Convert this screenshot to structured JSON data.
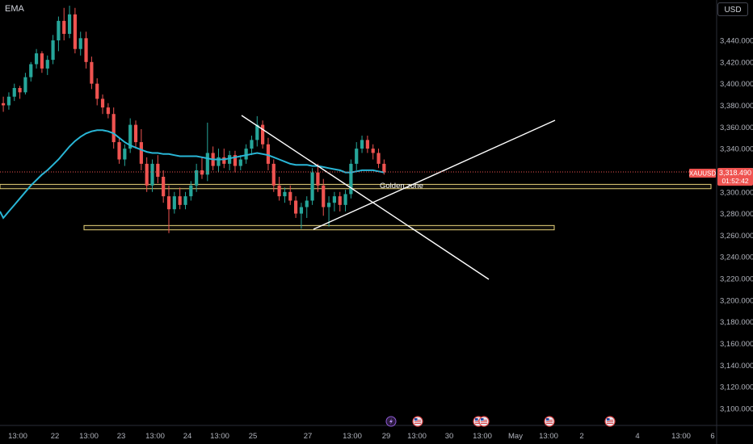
{
  "indicator_label": "EMA",
  "currency_button": "USD",
  "price_tag": {
    "symbol": "XAUUSD",
    "price": "3,318.490",
    "countdown": "01:52:42"
  },
  "annotation": "Golden zone",
  "colors": {
    "bull": "#26a69a",
    "bear": "#ef5350",
    "ema": "#29b6d6",
    "zone": "#e6d27a",
    "trendline": "#ffffff",
    "tag": "#ef5350"
  },
  "event_icons": [
    "lightning-icon",
    "us-flag-icon",
    "us-flag-icon",
    "us-flag-icon",
    "us-flag-icon",
    "us-flag-icon"
  ],
  "chart_data": {
    "type": "candlestick",
    "symbol": "XAUUSD",
    "last_price": 3318.49,
    "ylim": [
      3090,
      3470
    ],
    "y_ticks": [
      "3,440.000",
      "3,420.000",
      "3,400.000",
      "3,380.000",
      "3,360.000",
      "3,340.000",
      "3,320.000",
      "3,300.000",
      "3,280.000",
      "3,260.000",
      "3,240.000",
      "3,220.000",
      "3,200.000",
      "3,180.000",
      "3,160.000",
      "3,140.000",
      "3,120.000",
      "3,100.000"
    ],
    "x_ticks": [
      "13:00",
      "22",
      "13:00",
      "23",
      "13:00",
      "24",
      "13:00",
      "25",
      "27",
      "13:00",
      "29",
      "13:00",
      "30",
      "13:00",
      "May",
      "13:00",
      "2",
      "4",
      "13:00",
      "6"
    ],
    "candles": [
      [
        3382,
        3388,
        3374,
        3380
      ],
      [
        3380,
        3392,
        3376,
        3388
      ],
      [
        3388,
        3400,
        3384,
        3396
      ],
      [
        3396,
        3398,
        3386,
        3392
      ],
      [
        3392,
        3410,
        3390,
        3406
      ],
      [
        3406,
        3420,
        3402,
        3418
      ],
      [
        3418,
        3432,
        3414,
        3428
      ],
      [
        3428,
        3430,
        3410,
        3414
      ],
      [
        3414,
        3426,
        3408,
        3422
      ],
      [
        3422,
        3445,
        3418,
        3440
      ],
      [
        3440,
        3462,
        3430,
        3458
      ],
      [
        3458,
        3470,
        3440,
        3446
      ],
      [
        3446,
        3472,
        3442,
        3464
      ],
      [
        3464,
        3470,
        3428,
        3432
      ],
      [
        3432,
        3448,
        3426,
        3442
      ],
      [
        3442,
        3448,
        3414,
        3420
      ],
      [
        3420,
        3425,
        3395,
        3400
      ],
      [
        3400,
        3405,
        3380,
        3386
      ],
      [
        3386,
        3390,
        3372,
        3378
      ],
      [
        3378,
        3382,
        3368,
        3372
      ],
      [
        3372,
        3378,
        3340,
        3346
      ],
      [
        3346,
        3350,
        3326,
        3330
      ],
      [
        3330,
        3344,
        3324,
        3340
      ],
      [
        3340,
        3368,
        3336,
        3362
      ],
      [
        3362,
        3366,
        3340,
        3346
      ],
      [
        3346,
        3358,
        3320,
        3326
      ],
      [
        3326,
        3332,
        3300,
        3306
      ],
      [
        3306,
        3330,
        3300,
        3326
      ],
      [
        3326,
        3334,
        3308,
        3314
      ],
      [
        3314,
        3320,
        3290,
        3296
      ],
      [
        3296,
        3306,
        3262,
        3284
      ],
      [
        3284,
        3300,
        3280,
        3296
      ],
      [
        3296,
        3304,
        3284,
        3288
      ],
      [
        3288,
        3300,
        3284,
        3296
      ],
      [
        3296,
        3310,
        3292,
        3306
      ],
      [
        3306,
        3326,
        3300,
        3320
      ],
      [
        3320,
        3332,
        3312,
        3316
      ],
      [
        3316,
        3364,
        3310,
        3336
      ],
      [
        3336,
        3342,
        3320,
        3324
      ],
      [
        3324,
        3340,
        3318,
        3332
      ],
      [
        3332,
        3340,
        3322,
        3326
      ],
      [
        3326,
        3338,
        3320,
        3334
      ],
      [
        3334,
        3338,
        3318,
        3324
      ],
      [
        3324,
        3334,
        3320,
        3330
      ],
      [
        3330,
        3344,
        3326,
        3340
      ],
      [
        3340,
        3352,
        3334,
        3348
      ],
      [
        3348,
        3370,
        3342,
        3362
      ],
      [
        3362,
        3366,
        3340,
        3344
      ],
      [
        3344,
        3350,
        3320,
        3326
      ],
      [
        3326,
        3330,
        3300,
        3306
      ],
      [
        3306,
        3314,
        3292,
        3296
      ],
      [
        3296,
        3304,
        3290,
        3300
      ],
      [
        3300,
        3306,
        3288,
        3292
      ],
      [
        3292,
        3296,
        3276,
        3280
      ],
      [
        3280,
        3290,
        3266,
        3286
      ],
      [
        3286,
        3296,
        3276,
        3292
      ],
      [
        3292,
        3322,
        3288,
        3318
      ],
      [
        3318,
        3326,
        3300,
        3306
      ],
      [
        3306,
        3312,
        3278,
        3286
      ],
      [
        3286,
        3296,
        3268,
        3290
      ],
      [
        3290,
        3300,
        3282,
        3296
      ],
      [
        3296,
        3300,
        3282,
        3288
      ],
      [
        3288,
        3302,
        3282,
        3298
      ],
      [
        3298,
        3330,
        3294,
        3326
      ],
      [
        3326,
        3346,
        3320,
        3340
      ],
      [
        3340,
        3352,
        3336,
        3348
      ],
      [
        3348,
        3352,
        3336,
        3340
      ],
      [
        3340,
        3344,
        3330,
        3336
      ],
      [
        3336,
        3340,
        3322,
        3326
      ],
      [
        3326,
        3330,
        3316,
        3318
      ]
    ],
    "ema": [
      3276,
      3282,
      3288,
      3294,
      3300,
      3306,
      3311,
      3316,
      3320,
      3325,
      3330,
      3336,
      3342,
      3347,
      3351,
      3354,
      3356,
      3357,
      3357,
      3356,
      3354,
      3350,
      3346,
      3343,
      3341,
      3339,
      3337,
      3336,
      3336,
      3335,
      3335,
      3334,
      3333,
      3333,
      3333,
      3333,
      3332,
      3331,
      3330,
      3330,
      3330,
      3331,
      3332,
      3333,
      3334,
      3335,
      3336,
      3335,
      3334,
      3332,
      3330,
      3328,
      3326,
      3325,
      3325,
      3325,
      3324,
      3324,
      3323,
      3322,
      3321,
      3320,
      3318,
      3318,
      3319,
      3320,
      3320,
      3320,
      3319,
      3318
    ],
    "zones": [
      {
        "low": 3303,
        "high": 3307
      },
      {
        "low": 3265,
        "high": 3269
      }
    ]
  }
}
